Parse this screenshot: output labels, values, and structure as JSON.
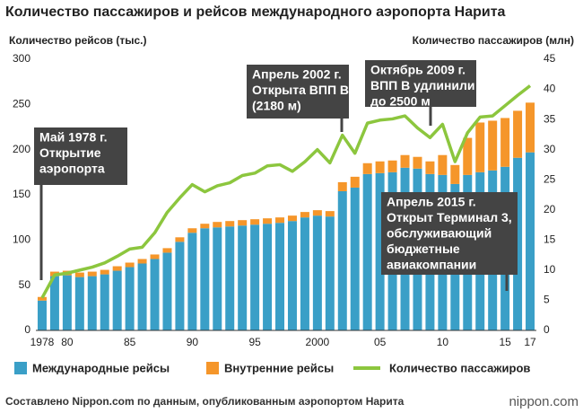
{
  "chart_data": {
    "type": "bar-line",
    "title": "Количество пассажиров и рейсов международного аэропорта Нарита",
    "y_label": "Количество рейсов (тыс.)",
    "y2_label": "Количество пассажиров (млн)",
    "source": "Составлено Nippon.com по данным, опубликованным аэропортом Нарита",
    "logo": "nippon.com",
    "categories": [
      "1978",
      null,
      "80",
      null,
      null,
      null,
      null,
      "85",
      null,
      null,
      null,
      null,
      "90",
      null,
      null,
      null,
      null,
      "95",
      null,
      null,
      null,
      null,
      "2000",
      null,
      null,
      null,
      null,
      "05",
      null,
      null,
      null,
      null,
      "10",
      null,
      null,
      null,
      null,
      "15",
      null,
      "17"
    ],
    "series": [
      {
        "name": "Международные рейсы",
        "color": "#3a9fc7",
        "kind": "bar",
        "values": [
          33,
          60,
          61,
          59,
          60,
          62,
          66,
          70,
          74,
          79,
          86,
          98,
          108,
          113,
          114,
          115,
          116,
          117,
          118,
          119,
          121,
          125,
          127,
          126,
          154,
          158,
          173,
          174,
          175,
          180,
          179,
          173,
          172,
          162,
          172,
          175,
          177,
          181,
          191,
          197
        ]
      },
      {
        "name": "Внутренние рейсы",
        "color": "#f5962a",
        "kind": "bar",
        "values": [
          4,
          5,
          5,
          5,
          5,
          5,
          5,
          5,
          5,
          5,
          5,
          5,
          5,
          5,
          6,
          6,
          6,
          6,
          6,
          6,
          6,
          6,
          6,
          6,
          10,
          12,
          12,
          13,
          13,
          14,
          13,
          14,
          22,
          21,
          41,
          55,
          55,
          54,
          52,
          55
        ]
      },
      {
        "name": "Количество пассажиров",
        "color": "#8cc63e",
        "kind": "line",
        "axis": "y2",
        "values": [
          5.4,
          9.2,
          9.5,
          10,
          10.5,
          11.2,
          12.3,
          13.5,
          13.8,
          16.2,
          19.6,
          22,
          24.2,
          23,
          24,
          24.5,
          25.7,
          26.1,
          27.3,
          27.5,
          26.4,
          28,
          30,
          27.8,
          32.4,
          29.4,
          34.4,
          34.9,
          35.1,
          35.6,
          33.6,
          32,
          34.2,
          28,
          32.8,
          35.4,
          35.6,
          37.3,
          39,
          40.6
        ]
      }
    ],
    "ylim": [
      0,
      300
    ],
    "yticks": [
      0,
      50,
      100,
      150,
      200,
      250,
      300
    ],
    "y2lim": [
      0,
      45
    ],
    "y2ticks": [
      0,
      5,
      10,
      15,
      20,
      25,
      30,
      35,
      40,
      45
    ],
    "annotations": [
      {
        "lines": [
          "Май 1978 г.",
          "Открытие",
          "аэропорта"
        ]
      },
      {
        "lines": [
          "Апрель 2002 г.",
          "Открыта ВПП B",
          "(2180 м)"
        ]
      },
      {
        "lines": [
          "Октябрь 2009 г.",
          "ВПП B удлинили",
          "до 2500 м"
        ]
      },
      {
        "lines": [
          "Апрель 2015 г.",
          "Открыт Терминал 3,",
          "обслуживающий",
          "бюджетные",
          "авиакомпании"
        ]
      }
    ]
  }
}
